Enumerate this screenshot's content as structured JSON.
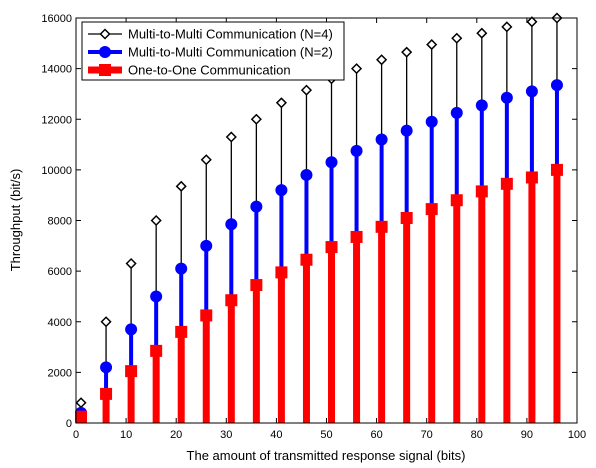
{
  "chart_data": {
    "type": "stem",
    "xlabel": "The amount of transmitted response signal (bits)",
    "ylabel": "Throughput (bit/s)",
    "xlim": [
      0,
      100
    ],
    "ylim": [
      0,
      16000
    ],
    "xticks": [
      0,
      10,
      20,
      30,
      40,
      50,
      60,
      70,
      80,
      90,
      100
    ],
    "yticks": [
      0,
      2000,
      4000,
      6000,
      8000,
      10000,
      12000,
      14000,
      16000
    ],
    "grid": false,
    "legend_position": "top-left",
    "x": [
      1,
      6,
      11,
      16,
      21,
      26,
      31,
      36,
      41,
      46,
      51,
      56,
      61,
      66,
      71,
      76,
      81,
      86,
      91,
      96
    ],
    "series": [
      {
        "name": "Multi-to-Multi Communication (N=4)",
        "color": "#000000",
        "marker": "diamond",
        "values": [
          800,
          4000,
          6300,
          8000,
          9350,
          10400,
          11300,
          12000,
          12650,
          13150,
          13600,
          14000,
          14350,
          14650,
          14950,
          15200,
          15400,
          15650,
          15850,
          16000
        ]
      },
      {
        "name": "Multi-to-Multi Communication (N=2)",
        "color": "#0000ff",
        "marker": "circle",
        "values": [
          400,
          2200,
          3700,
          5000,
          6100,
          7000,
          7850,
          8550,
          9200,
          9800,
          10300,
          10750,
          11200,
          11550,
          11900,
          12250,
          12550,
          12850,
          13100,
          13350
        ]
      },
      {
        "name": "One-to-One Communication",
        "color": "#ff0000",
        "marker": "square",
        "values": [
          250,
          1150,
          2050,
          2850,
          3600,
          4250,
          4850,
          5450,
          5950,
          6450,
          6950,
          7350,
          7750,
          8100,
          8450,
          8800,
          9150,
          9450,
          9700,
          10000
        ]
      }
    ]
  }
}
